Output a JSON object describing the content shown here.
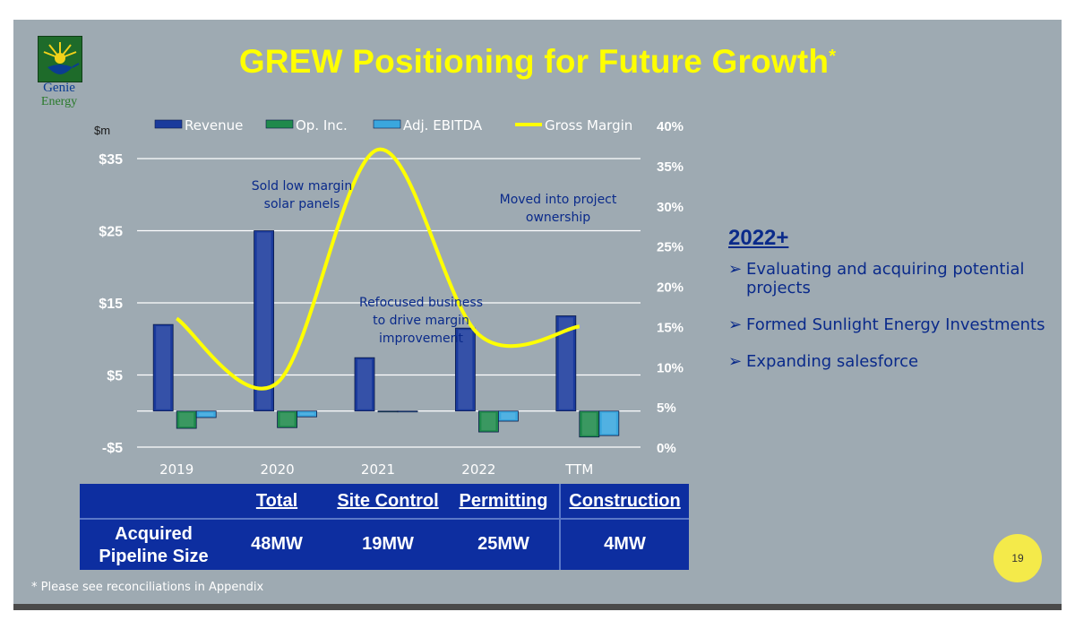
{
  "slide": {
    "title": "GREW Positioning for Future Growth",
    "title_asterisk": "*",
    "logo": {
      "line1": "Genie",
      "line2": "Energy"
    },
    "footnote": "* Please see reconciliations in Appendix",
    "page_number": "19"
  },
  "right_panel": {
    "heading": "2022+",
    "arrow_glyph": "➢",
    "bullets": [
      "Evaluating and acquiring potential projects",
      "Formed Sunlight Energy Investments",
      "Expanding salesforce"
    ]
  },
  "pipeline_table": {
    "headers": [
      "Total",
      "Site Control",
      "Permitting",
      "Construction"
    ],
    "row_label_line1": "Acquired",
    "row_label_line2": "Pipeline Size",
    "values": [
      "48MW",
      "19MW",
      "25MW",
      "4MW"
    ]
  },
  "chart_data": {
    "type": "bar",
    "categories": [
      "2019",
      "2020",
      "2021",
      "2022",
      "TTM"
    ],
    "series": [
      {
        "name": "Revenue",
        "values": [
          12,
          25,
          7.4,
          11.5,
          13.2
        ],
        "color": "#1a3a9c"
      },
      {
        "name": "Op. Inc.",
        "values": [
          -2.4,
          -2.3,
          -0.1,
          -2.9,
          -3.6
        ],
        "color": "#1f8a4c"
      },
      {
        "name": "Adj. EBITDA",
        "values": [
          -0.9,
          -0.8,
          -0.1,
          -1.4,
          -3.4
        ],
        "color": "#3aa7de"
      }
    ],
    "line_series": {
      "name": "Gross Margin",
      "values": [
        16,
        8,
        37,
        14,
        15
      ],
      "color": "#ffff00",
      "axis": "right"
    },
    "ylabel": "$m",
    "ylim": [
      -5,
      40
    ],
    "y_ticks": [
      "$35",
      "$25",
      "$15",
      "$5",
      "-$5"
    ],
    "y_tick_values": [
      35,
      25,
      15,
      5,
      -5
    ],
    "y2lim": [
      0,
      40
    ],
    "y2_ticks": [
      "40%",
      "35%",
      "30%",
      "25%",
      "20%",
      "15%",
      "10%",
      "5%",
      "0%"
    ],
    "y2_tick_values": [
      40,
      35,
      30,
      25,
      20,
      15,
      10,
      5,
      0
    ],
    "legend_position": "top",
    "annotations": [
      {
        "line1": "Sold low margin",
        "line2": "solar panels"
      },
      {
        "line1": "Moved into project",
        "line2": "ownership"
      },
      {
        "line1": "Refocused business",
        "line2": "to drive margin",
        "line3": "improvement"
      }
    ]
  }
}
